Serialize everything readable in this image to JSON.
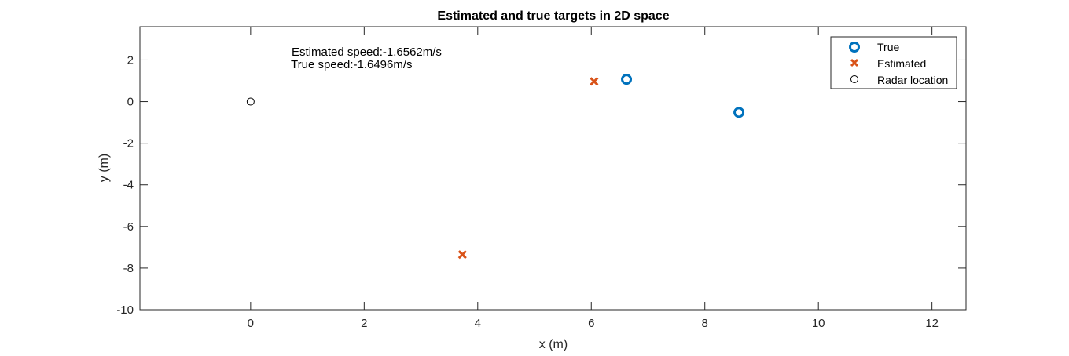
{
  "chart_data": {
    "type": "scatter",
    "title": "Estimated and true targets in 2D space",
    "xlabel": "x (m)",
    "ylabel": "y (m)",
    "xlim": [
      -1.95,
      12.6
    ],
    "ylim": [
      -10,
      3.6
    ],
    "xticks": [
      0,
      2,
      4,
      6,
      8,
      10,
      12
    ],
    "yticks": [
      -10,
      -8,
      -6,
      -4,
      -2,
      0,
      2
    ],
    "xtick_labels": [
      "0",
      "2",
      "4",
      "6",
      "8",
      "10",
      "12"
    ],
    "ytick_labels": [
      "-10",
      "-8",
      "-6",
      "-4",
      "-2",
      "0",
      "2"
    ],
    "grid": false,
    "legend_position": "top-right",
    "series": [
      {
        "name": "True",
        "marker": "circle-thick",
        "color": "#0072bd",
        "points": [
          {
            "x": 6.62,
            "y": 1.07
          },
          {
            "x": 8.6,
            "y": -0.52
          }
        ]
      },
      {
        "name": "Estimated",
        "marker": "x",
        "color": "#d95319",
        "points": [
          {
            "x": 6.05,
            "y": 0.97
          },
          {
            "x": 3.73,
            "y": -7.35
          }
        ]
      },
      {
        "name": "Radar location",
        "marker": "circle-thin",
        "color": "#000000",
        "points": [
          {
            "x": 0,
            "y": 0
          }
        ]
      }
    ],
    "annotations": [
      {
        "text": "Estimated speed:-1.6562m/s"
      },
      {
        "text": "True speed:-1.6496m/s"
      }
    ]
  }
}
